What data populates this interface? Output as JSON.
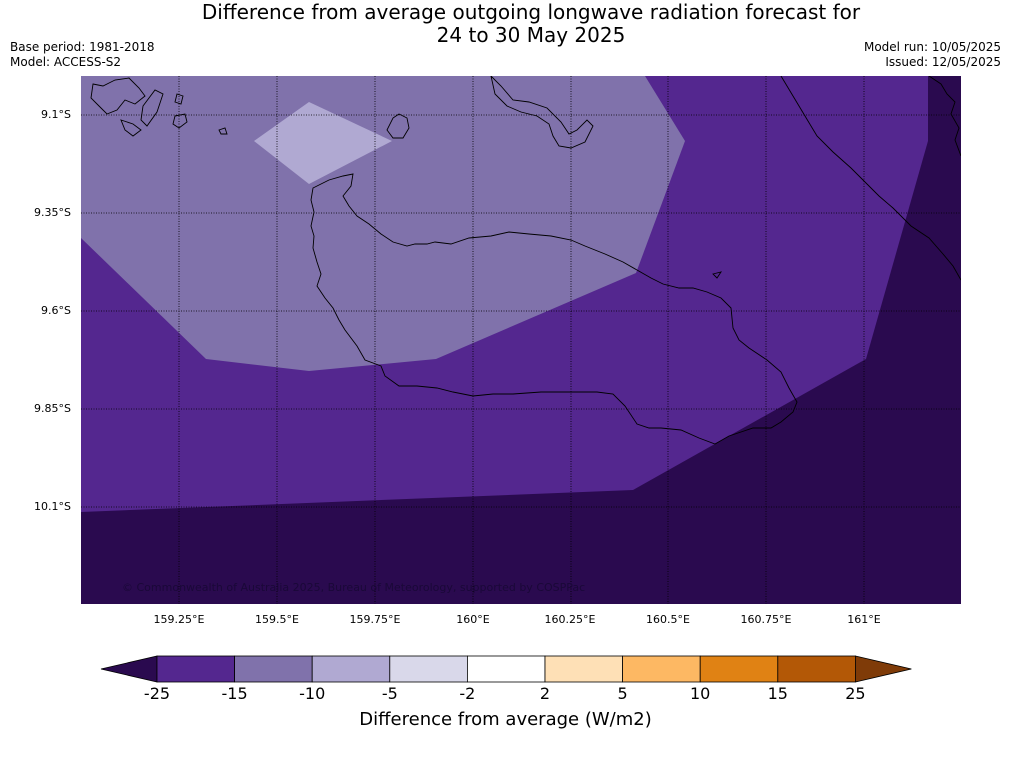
{
  "title": {
    "line1": "Difference from average outgoing longwave radiation forecast for",
    "line2": "24 to 30 May 2025"
  },
  "meta": {
    "base_period": "Base period: 1981-2018",
    "model": "Model: ACCESS-S2",
    "model_run": "Model run: 10/05/2025",
    "issued": "Issued: 12/05/2025"
  },
  "map": {
    "lat_labels": [
      "9.1°S",
      "9.35°S",
      "9.6°S",
      "9.85°S",
      "10.1°S"
    ],
    "lon_labels": [
      "159.25°E",
      "159.5°E",
      "159.75°E",
      "160°E",
      "160.25°E",
      "160.5°E",
      "160.75°E",
      "161°E"
    ],
    "copyright": "© Commonwealth of Australia 2025, Bureau of Meteorology, supported by COSPPac"
  },
  "colorbar": {
    "title": "Difference from average (W/m2)",
    "ticks": [
      "-25",
      "-15",
      "-10",
      "-5",
      "-2",
      "2",
      "5",
      "10",
      "15",
      "25"
    ],
    "colors": [
      "#2a0a4f",
      "#54278f",
      "#8072ab",
      "#b0a9d2",
      "#d9d8ea",
      "#ffffff",
      "#fee0b6",
      "#fdb863",
      "#e08214",
      "#b35806",
      "#7f3b08"
    ]
  }
}
